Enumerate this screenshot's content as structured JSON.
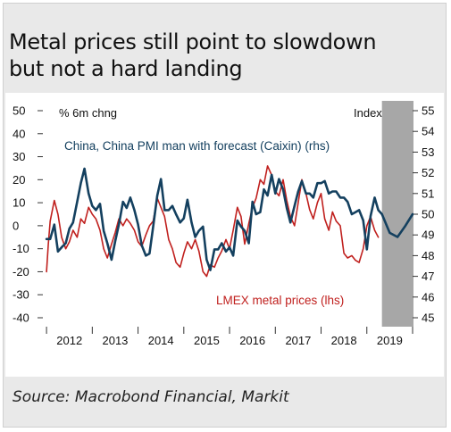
{
  "title": "Metal prices still point to slowdown but not a hard landing",
  "title_line1": "Metal prices still point to slowdown",
  "title_line2": "but not a hard landing",
  "source": "Source: Macrobond Financial, Markit",
  "colors": {
    "pmi": "#14405f",
    "lmex": "#c0201e",
    "forecast_band": "#a7a7a7",
    "axis": "#333333"
  },
  "chart_data": {
    "type": "line",
    "left_axis_label": "% 6m chng",
    "right_axis_label": "Index",
    "left_ylim": [
      -40,
      50
    ],
    "left_ticks": [
      50,
      40,
      30,
      20,
      10,
      0,
      -10,
      -20,
      -30,
      -40
    ],
    "left_tick_labels": [
      "50",
      "40",
      "30",
      "20",
      "10",
      "0",
      "-10",
      "-20",
      "-30",
      "-40"
    ],
    "right_ylim": [
      45,
      55
    ],
    "right_ticks": [
      55,
      54,
      53,
      52,
      51,
      50,
      49,
      48,
      47,
      46,
      45
    ],
    "right_tick_labels": [
      "55",
      "54",
      "53",
      "52",
      "51",
      "50",
      "49",
      "48",
      "47",
      "46",
      "45"
    ],
    "x_range": [
      2011.92,
      2020.0
    ],
    "year_labels": [
      "2012",
      "2013",
      "2014",
      "2015",
      "2016",
      "2017",
      "2018",
      "2019"
    ],
    "forecast_start": 2019.33,
    "series": [
      {
        "name": "China, China PMI man with forecast (Caixin) (rhs)",
        "axis": "right",
        "x": [
          2012.0,
          2012.08,
          2012.17,
          2012.25,
          2012.33,
          2012.42,
          2012.5,
          2012.58,
          2012.67,
          2012.75,
          2012.83,
          2012.92,
          2013.0,
          2013.08,
          2013.17,
          2013.25,
          2013.33,
          2013.42,
          2013.5,
          2013.58,
          2013.67,
          2013.75,
          2013.83,
          2013.92,
          2014.0,
          2014.08,
          2014.17,
          2014.25,
          2014.33,
          2014.42,
          2014.5,
          2014.58,
          2014.67,
          2014.75,
          2014.83,
          2014.92,
          2015.0,
          2015.08,
          2015.17,
          2015.25,
          2015.33,
          2015.42,
          2015.5,
          2015.58,
          2015.67,
          2015.75,
          2015.83,
          2015.92,
          2016.0,
          2016.08,
          2016.17,
          2016.25,
          2016.33,
          2016.42,
          2016.5,
          2016.58,
          2016.67,
          2016.75,
          2016.83,
          2016.92,
          2017.0,
          2017.08,
          2017.17,
          2017.25,
          2017.33,
          2017.42,
          2017.5,
          2017.58,
          2017.67,
          2017.75,
          2017.83,
          2017.92,
          2018.0,
          2018.08,
          2018.17,
          2018.25,
          2018.33,
          2018.42,
          2018.5,
          2018.58,
          2018.67,
          2018.75,
          2018.83,
          2018.92,
          2019.0,
          2019.08,
          2019.17,
          2019.25,
          2019.33,
          2019.5,
          2019.67,
          2019.83,
          2020.0
        ],
        "y": [
          48.8,
          48.8,
          49.5,
          48.2,
          48.4,
          48.6,
          49.3,
          49.6,
          50.6,
          51.5,
          52.2,
          51.0,
          50.4,
          50.2,
          50.5,
          49.2,
          48.6,
          47.8,
          48.7,
          49.5,
          50.6,
          50.3,
          50.8,
          50.2,
          49.5,
          48.5,
          48.0,
          48.1,
          49.4,
          50.9,
          51.7,
          50.2,
          50.2,
          50.4,
          50.0,
          49.6,
          49.8,
          50.7,
          49.6,
          48.9,
          49.2,
          49.4,
          47.8,
          47.3,
          48.3,
          48.3,
          48.6,
          48.2,
          48.4,
          48.0,
          49.7,
          49.4,
          49.2,
          48.6,
          50.6,
          50.0,
          50.1,
          51.2,
          50.9,
          51.9,
          51.0,
          51.7,
          51.2,
          50.3,
          49.6,
          50.4,
          51.1,
          51.6,
          51.0,
          51.0,
          50.8,
          51.5,
          51.5,
          51.6,
          51.0,
          51.1,
          51.1,
          50.8,
          50.8,
          50.6,
          50.0,
          50.1,
          50.2,
          49.7,
          48.3,
          49.9,
          50.8,
          50.2,
          50.0,
          49.1,
          48.9,
          49.4,
          50.0
        ]
      },
      {
        "name": "LMEX metal prices (lhs)",
        "axis": "left",
        "x": [
          2012.0,
          2012.04,
          2012.08,
          2012.17,
          2012.25,
          2012.33,
          2012.42,
          2012.5,
          2012.58,
          2012.67,
          2012.75,
          2012.83,
          2012.92,
          2013.0,
          2013.08,
          2013.17,
          2013.25,
          2013.33,
          2013.42,
          2013.5,
          2013.58,
          2013.67,
          2013.75,
          2013.83,
          2013.92,
          2014.0,
          2014.08,
          2014.17,
          2014.25,
          2014.33,
          2014.42,
          2014.5,
          2014.58,
          2014.67,
          2014.75,
          2014.83,
          2014.92,
          2015.0,
          2015.08,
          2015.17,
          2015.25,
          2015.33,
          2015.42,
          2015.5,
          2015.58,
          2015.67,
          2015.75,
          2015.83,
          2015.92,
          2016.0,
          2016.08,
          2016.17,
          2016.25,
          2016.33,
          2016.42,
          2016.5,
          2016.58,
          2016.67,
          2016.75,
          2016.83,
          2016.92,
          2017.0,
          2017.08,
          2017.17,
          2017.25,
          2017.33,
          2017.42,
          2017.5,
          2017.58,
          2017.67,
          2017.75,
          2017.83,
          2017.92,
          2018.0,
          2018.08,
          2018.17,
          2018.25,
          2018.33,
          2018.42,
          2018.5,
          2018.58,
          2018.67,
          2018.75,
          2018.83,
          2018.92,
          2019.0,
          2019.08,
          2019.17,
          2019.25
        ],
        "y": [
          -20,
          -8,
          2,
          11,
          5,
          -5,
          -10,
          -7,
          -2,
          -5,
          3,
          1,
          8,
          5,
          3,
          -2,
          -10,
          -14,
          -8,
          -3,
          3,
          0,
          3,
          1,
          -2,
          -7,
          -9,
          -4,
          0,
          2,
          12,
          8,
          4,
          -6,
          -10,
          -16,
          -18,
          -12,
          -7,
          -10,
          -6,
          -11,
          -20,
          -22,
          -17,
          -18,
          -14,
          -11,
          -6,
          -10,
          -2,
          8,
          4,
          -8,
          1,
          8,
          12,
          20,
          18,
          26,
          22,
          15,
          13,
          20,
          11,
          4,
          0,
          10,
          20,
          14,
          7,
          3,
          10,
          14,
          3,
          -2,
          6,
          2,
          0,
          -12,
          -14,
          -13,
          -15,
          -16,
          -10,
          0,
          4,
          -2,
          -5
        ]
      }
    ],
    "annotations": [
      "China, China PMI man with forecast (Caixin) (rhs)",
      "LMEX metal prices (lhs)"
    ]
  }
}
